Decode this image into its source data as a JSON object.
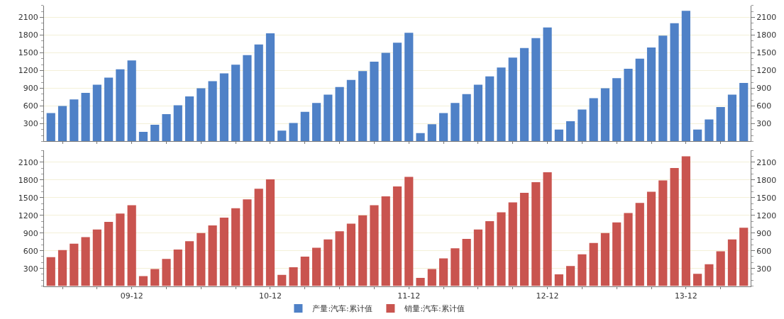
{
  "chart_data": [
    {
      "type": "bar",
      "categories": [
        null,
        null,
        null,
        null,
        null,
        null,
        null,
        null,
        null,
        null,
        null,
        null,
        null,
        null,
        null,
        null,
        null,
        null,
        null,
        null,
        null,
        null,
        null,
        null,
        null,
        null,
        null,
        null,
        null,
        null,
        null,
        null,
        null,
        null,
        null,
        null,
        null,
        null,
        null,
        null,
        null,
        null,
        null,
        null,
        null,
        null,
        null,
        null,
        null,
        null,
        null,
        null,
        null,
        null,
        null,
        null,
        null,
        null,
        null,
        null,
        null
      ],
      "series": [
        {
          "name": "产量:汽车:累计值",
          "color": "#4f81c7",
          "values": [
            480,
            600,
            710,
            820,
            960,
            1080,
            1220,
            1370,
            160,
            280,
            460,
            610,
            760,
            900,
            1020,
            1150,
            1300,
            1460,
            1640,
            1830,
            180,
            310,
            500,
            650,
            790,
            920,
            1040,
            1190,
            1350,
            1500,
            1670,
            1840,
            140,
            290,
            480,
            650,
            800,
            960,
            1100,
            1250,
            1420,
            1580,
            1750,
            1930,
            200,
            340,
            540,
            730,
            900,
            1070,
            1230,
            1400,
            1590,
            1790,
            2000,
            2210,
            200,
            370,
            580,
            790,
            990
          ]
        }
      ],
      "ylim": [
        0,
        2300
      ],
      "yticks": [
        300,
        600,
        900,
        1200,
        1500,
        1800,
        2100
      ],
      "y2lim": [
        0,
        2300
      ],
      "y2ticks": [
        300,
        600,
        900,
        1200,
        1500,
        1800,
        2100
      ],
      "grid": "y",
      "legend": "bottom",
      "tick_labels": "y"
    },
    {
      "type": "bar",
      "categories": [
        null,
        null,
        null,
        null,
        null,
        null,
        null,
        "09-12",
        null,
        null,
        null,
        null,
        null,
        null,
        null,
        null,
        null,
        null,
        null,
        "10-12",
        null,
        null,
        null,
        null,
        null,
        null,
        null,
        null,
        null,
        null,
        null,
        "11-12",
        null,
        null,
        null,
        null,
        null,
        null,
        null,
        null,
        null,
        null,
        null,
        "12-12",
        null,
        null,
        null,
        null,
        null,
        null,
        null,
        null,
        null,
        null,
        null,
        "13-12",
        null,
        null,
        null,
        null,
        null
      ],
      "series": [
        {
          "name": "销量:汽车:累计值",
          "color": "#c9544f",
          "values": [
            490,
            610,
            720,
            830,
            960,
            1090,
            1230,
            1370,
            170,
            290,
            460,
            620,
            760,
            900,
            1030,
            1160,
            1320,
            1470,
            1650,
            1810,
            190,
            320,
            500,
            650,
            790,
            930,
            1060,
            1200,
            1370,
            1520,
            1690,
            1850,
            140,
            290,
            470,
            640,
            800,
            960,
            1100,
            1250,
            1420,
            1580,
            1760,
            1930,
            200,
            340,
            540,
            730,
            900,
            1080,
            1240,
            1410,
            1600,
            1790,
            2000,
            2200,
            210,
            370,
            590,
            790,
            990
          ]
        }
      ],
      "ylim": [
        0,
        2300
      ],
      "yticks": [
        300,
        600,
        900,
        1200,
        1500,
        1800,
        2100
      ],
      "y2lim": [
        0,
        2300
      ],
      "y2ticks": [
        300,
        600,
        900,
        1200,
        1500,
        1800,
        2100
      ],
      "grid": "y",
      "legend": "bottom"
    }
  ]
}
